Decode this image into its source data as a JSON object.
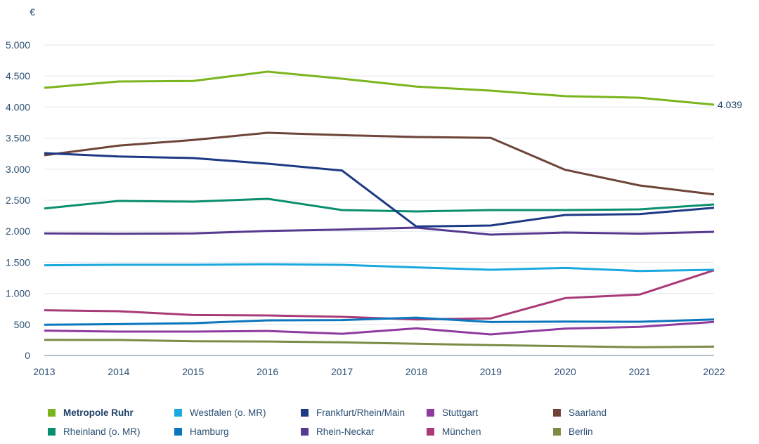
{
  "chart_data": {
    "type": "line",
    "title": "",
    "xlabel": "",
    "ylabel": "€",
    "x": [
      "2013",
      "2014",
      "2015",
      "2016",
      "2017",
      "2018",
      "2019",
      "2020",
      "2021",
      "2022"
    ],
    "ylim": [
      0,
      5000
    ],
    "yticks": [
      0,
      500,
      1000,
      1500,
      2000,
      2500,
      3000,
      3500,
      4000,
      4500,
      5000
    ],
    "ytick_labels": [
      "0",
      "500",
      "1.000",
      "1.500",
      "2.000",
      "2.500",
      "3.000",
      "3.500",
      "4.000",
      "4.500",
      "5.000"
    ],
    "grid": true,
    "legend_position": "bottom",
    "series": [
      {
        "name": "Metropole Ruhr",
        "color": "#7ab51d",
        "highlight": true,
        "end_label": "4.039",
        "values": [
          4310,
          4412,
          4420,
          4570,
          4457,
          4330,
          4265,
          4175,
          4150,
          4039
        ]
      },
      {
        "name": "Westfalen (o. MR)",
        "color": "#1aa8de",
        "values": [
          1452,
          1460,
          1460,
          1470,
          1459,
          1418,
          1380,
          1410,
          1361,
          1380
        ]
      },
      {
        "name": "Frankfurt/Rhein/Main",
        "color": "#1d3885",
        "values": [
          3258,
          3205,
          3179,
          3088,
          2978,
          2077,
          2093,
          2262,
          2277,
          2379
        ]
      },
      {
        "name": "Stuttgart",
        "color": "#8e3a9e",
        "values": [
          400,
          385,
          385,
          395,
          350,
          437,
          339,
          433,
          460,
          540
        ]
      },
      {
        "name": "Saarland",
        "color": "#6e4438",
        "values": [
          3224,
          3379,
          3469,
          3586,
          3548,
          3518,
          3505,
          2990,
          2738,
          2594
        ]
      },
      {
        "name": "Rheinland (o. MR)",
        "color": "#0a8f6e",
        "values": [
          2368,
          2489,
          2477,
          2523,
          2342,
          2319,
          2342,
          2342,
          2353,
          2432
        ]
      },
      {
        "name": "Hamburg",
        "color": "#0b76bd",
        "values": [
          494,
          505,
          520,
          566,
          570,
          610,
          538,
          546,
          543,
          580
        ]
      },
      {
        "name": "Rhein-Neckar",
        "color": "#573a8f",
        "values": [
          1965,
          1960,
          1965,
          2006,
          2028,
          2059,
          1946,
          1980,
          1961,
          1991
        ]
      },
      {
        "name": "München",
        "color": "#a83a78",
        "values": [
          728,
          713,
          652,
          645,
          622,
          580,
          596,
          924,
          981,
          1372
        ]
      },
      {
        "name": "Berlin",
        "color": "#7b8c47",
        "values": [
          252,
          250,
          230,
          225,
          212,
          189,
          166,
          150,
          132,
          143
        ]
      }
    ]
  },
  "legend": {
    "items": [
      {
        "label": "Metropole Ruhr",
        "color": "#7ab51d"
      },
      {
        "label": "Westfalen (o. MR)",
        "color": "#1aa8de"
      },
      {
        "label": "Frankfurt/Rhein/Main",
        "color": "#1d3885"
      },
      {
        "label": "Stuttgart",
        "color": "#8e3a9e"
      },
      {
        "label": "Saarland",
        "color": "#6e4438"
      },
      {
        "label": "Rheinland (o. MR)",
        "color": "#0a8f6e"
      },
      {
        "label": "Hamburg",
        "color": "#0b76bd"
      },
      {
        "label": "Rhein-Neckar",
        "color": "#573a8f"
      },
      {
        "label": "München",
        "color": "#a83a78"
      },
      {
        "label": "Berlin",
        "color": "#7b8c47"
      }
    ]
  },
  "colors": {
    "gridline": "#e6eaef",
    "axis": "#9aaabb",
    "text": "#2b4f73"
  }
}
